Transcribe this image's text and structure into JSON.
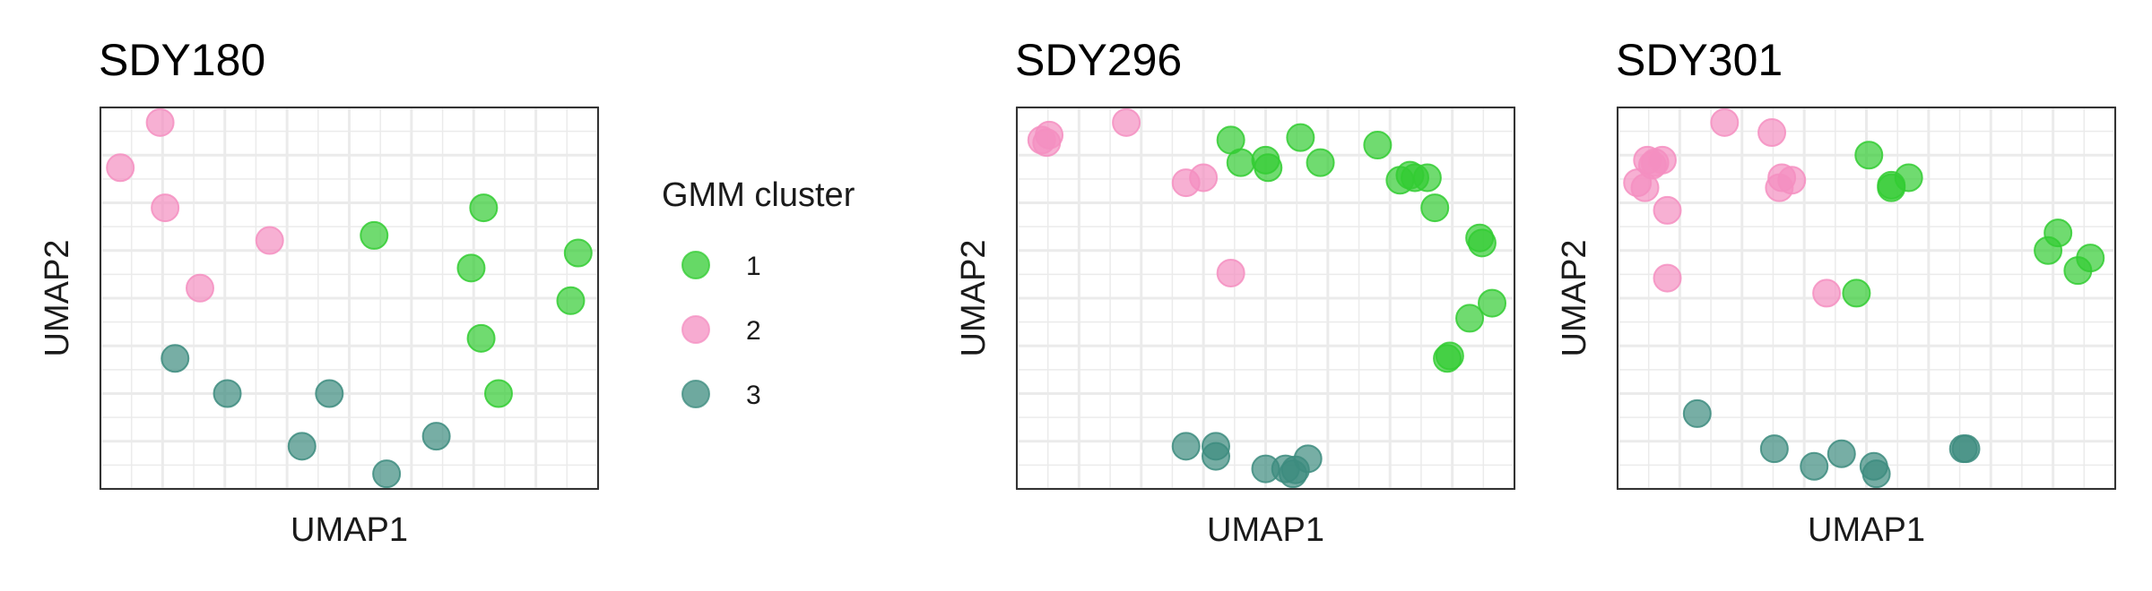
{
  "legend": {
    "title": "GMM cluster",
    "items": [
      {
        "label": "1",
        "color": "#33CC33"
      },
      {
        "label": "2",
        "color": "#F48FC1"
      },
      {
        "label": "3",
        "color": "#3D8C7F"
      }
    ]
  },
  "chart_data": [
    {
      "type": "scatter",
      "title": "SDY180",
      "xlabel": "UMAP1",
      "ylabel": "UMAP2",
      "ticks_shown": false,
      "grid": true,
      "xlim": [
        0.0,
        10.0
      ],
      "ylim": [
        0.0,
        7.6
      ],
      "points": [
        {
          "x": 1.2,
          "y": 7.3,
          "cluster": "2"
        },
        {
          "x": 0.4,
          "y": 6.4,
          "cluster": "2"
        },
        {
          "x": 1.3,
          "y": 5.6,
          "cluster": "2"
        },
        {
          "x": 3.4,
          "y": 4.95,
          "cluster": "2"
        },
        {
          "x": 2.0,
          "y": 4.0,
          "cluster": "2"
        },
        {
          "x": 5.5,
          "y": 5.05,
          "cluster": "1"
        },
        {
          "x": 7.7,
          "y": 5.6,
          "cluster": "1"
        },
        {
          "x": 7.45,
          "y": 4.4,
          "cluster": "1"
        },
        {
          "x": 9.6,
          "y": 4.7,
          "cluster": "1"
        },
        {
          "x": 9.45,
          "y": 3.75,
          "cluster": "1"
        },
        {
          "x": 7.65,
          "y": 3.0,
          "cluster": "1"
        },
        {
          "x": 8.0,
          "y": 1.9,
          "cluster": "1"
        },
        {
          "x": 1.5,
          "y": 2.6,
          "cluster": "3"
        },
        {
          "x": 2.55,
          "y": 1.9,
          "cluster": "3"
        },
        {
          "x": 4.6,
          "y": 1.9,
          "cluster": "3"
        },
        {
          "x": 4.05,
          "y": 0.85,
          "cluster": "3"
        },
        {
          "x": 6.75,
          "y": 1.05,
          "cluster": "3"
        },
        {
          "x": 5.75,
          "y": 0.3,
          "cluster": "3"
        }
      ]
    },
    {
      "type": "scatter",
      "title": "SDY296",
      "xlabel": "UMAP1",
      "ylabel": "UMAP2",
      "ticks_shown": false,
      "grid": true,
      "xlim": [
        0.0,
        10.0
      ],
      "ylim": [
        0.0,
        7.6
      ],
      "points": [
        {
          "x": 0.6,
          "y": 6.9,
          "cluster": "2"
        },
        {
          "x": 0.65,
          "y": 7.05,
          "cluster": "2"
        },
        {
          "x": 0.5,
          "y": 6.95,
          "cluster": "2"
        },
        {
          "x": 2.2,
          "y": 7.3,
          "cluster": "2"
        },
        {
          "x": 3.4,
          "y": 6.1,
          "cluster": "2"
        },
        {
          "x": 3.75,
          "y": 6.2,
          "cluster": "2"
        },
        {
          "x": 4.3,
          "y": 4.3,
          "cluster": "2"
        },
        {
          "x": 4.3,
          "y": 6.95,
          "cluster": "1"
        },
        {
          "x": 4.5,
          "y": 6.5,
          "cluster": "1"
        },
        {
          "x": 5.05,
          "y": 6.4,
          "cluster": "1"
        },
        {
          "x": 5.0,
          "y": 6.55,
          "cluster": "1"
        },
        {
          "x": 5.7,
          "y": 7.0,
          "cluster": "1"
        },
        {
          "x": 6.1,
          "y": 6.5,
          "cluster": "1"
        },
        {
          "x": 7.25,
          "y": 6.85,
          "cluster": "1"
        },
        {
          "x": 7.7,
          "y": 6.15,
          "cluster": "1"
        },
        {
          "x": 7.9,
          "y": 6.25,
          "cluster": "1"
        },
        {
          "x": 8.0,
          "y": 6.2,
          "cluster": "1"
        },
        {
          "x": 8.25,
          "y": 6.2,
          "cluster": "1"
        },
        {
          "x": 8.4,
          "y": 5.6,
          "cluster": "1"
        },
        {
          "x": 9.3,
          "y": 5.0,
          "cluster": "1"
        },
        {
          "x": 9.35,
          "y": 4.9,
          "cluster": "1"
        },
        {
          "x": 9.55,
          "y": 3.7,
          "cluster": "1"
        },
        {
          "x": 9.1,
          "y": 3.4,
          "cluster": "1"
        },
        {
          "x": 8.7,
          "y": 2.65,
          "cluster": "1"
        },
        {
          "x": 8.65,
          "y": 2.6,
          "cluster": "1"
        },
        {
          "x": 3.4,
          "y": 0.85,
          "cluster": "3"
        },
        {
          "x": 4.0,
          "y": 0.85,
          "cluster": "3"
        },
        {
          "x": 4.0,
          "y": 0.65,
          "cluster": "3"
        },
        {
          "x": 5.0,
          "y": 0.4,
          "cluster": "3"
        },
        {
          "x": 5.4,
          "y": 0.4,
          "cluster": "3"
        },
        {
          "x": 5.55,
          "y": 0.3,
          "cluster": "3"
        },
        {
          "x": 5.6,
          "y": 0.38,
          "cluster": "3"
        },
        {
          "x": 5.85,
          "y": 0.6,
          "cluster": "3"
        }
      ]
    },
    {
      "type": "scatter",
      "title": "SDY301",
      "xlabel": "UMAP1",
      "ylabel": "UMAP2",
      "ticks_shown": false,
      "grid": true,
      "xlim": [
        0.0,
        10.0
      ],
      "ylim": [
        0.0,
        7.6
      ],
      "points": [
        {
          "x": 0.6,
          "y": 6.55,
          "cluster": "2"
        },
        {
          "x": 0.7,
          "y": 6.45,
          "cluster": "2"
        },
        {
          "x": 0.75,
          "y": 6.5,
          "cluster": "2"
        },
        {
          "x": 0.9,
          "y": 6.55,
          "cluster": "2"
        },
        {
          "x": 0.4,
          "y": 6.1,
          "cluster": "2"
        },
        {
          "x": 0.55,
          "y": 6.0,
          "cluster": "2"
        },
        {
          "x": 1.0,
          "y": 5.55,
          "cluster": "2"
        },
        {
          "x": 2.15,
          "y": 7.3,
          "cluster": "2"
        },
        {
          "x": 3.1,
          "y": 7.1,
          "cluster": "2"
        },
        {
          "x": 3.3,
          "y": 6.2,
          "cluster": "2"
        },
        {
          "x": 3.5,
          "y": 6.15,
          "cluster": "2"
        },
        {
          "x": 3.25,
          "y": 6.0,
          "cluster": "2"
        },
        {
          "x": 1.0,
          "y": 4.2,
          "cluster": "2"
        },
        {
          "x": 4.2,
          "y": 3.9,
          "cluster": "2"
        },
        {
          "x": 5.05,
          "y": 6.65,
          "cluster": "1"
        },
        {
          "x": 5.5,
          "y": 6.0,
          "cluster": "1"
        },
        {
          "x": 5.5,
          "y": 6.05,
          "cluster": "1"
        },
        {
          "x": 5.85,
          "y": 6.2,
          "cluster": "1"
        },
        {
          "x": 4.8,
          "y": 3.9,
          "cluster": "1"
        },
        {
          "x": 8.85,
          "y": 5.1,
          "cluster": "1"
        },
        {
          "x": 8.65,
          "y": 4.75,
          "cluster": "1"
        },
        {
          "x": 9.5,
          "y": 4.6,
          "cluster": "1"
        },
        {
          "x": 9.25,
          "y": 4.35,
          "cluster": "1"
        },
        {
          "x": 1.6,
          "y": 1.5,
          "cluster": "3"
        },
        {
          "x": 3.15,
          "y": 0.8,
          "cluster": "3"
        },
        {
          "x": 3.95,
          "y": 0.45,
          "cluster": "3"
        },
        {
          "x": 4.5,
          "y": 0.7,
          "cluster": "3"
        },
        {
          "x": 5.15,
          "y": 0.45,
          "cluster": "3"
        },
        {
          "x": 5.2,
          "y": 0.3,
          "cluster": "3"
        },
        {
          "x": 6.95,
          "y": 0.8,
          "cluster": "3"
        },
        {
          "x": 7.0,
          "y": 0.8,
          "cluster": "3"
        }
      ]
    }
  ]
}
